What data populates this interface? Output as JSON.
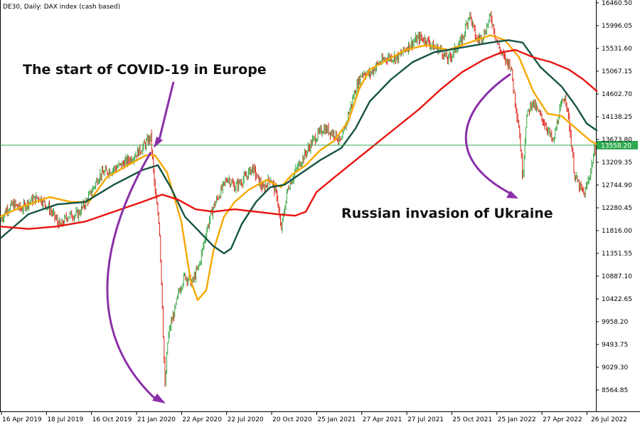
{
  "chart_data": {
    "type": "line",
    "title": "DE30, Daily:  DAX index (cash based)",
    "ylim": [
      8300,
      16460.5
    ],
    "grid": false,
    "x_ticks": [
      "16 Apr 2019",
      "18 Jul 2019",
      "16 Oct 2019",
      "21 Jan 2020",
      "22 Apr 2020",
      "22 Jul 2020",
      "20 Oct 2020",
      "25 Jan 2021",
      "27 Apr 2021",
      "27 Jul 2021",
      "25 Oct 2021",
      "25 Jan 2022",
      "27 Apr 2022",
      "26 Jul 2022"
    ],
    "y_ticks": [
      "16460.50",
      "15996.05",
      "15531.60",
      "15067.15",
      "14602.70",
      "14138.25",
      "13673.80",
      "13209.35",
      "12744.90",
      "12280.45",
      "11816.00",
      "11351.55",
      "10887.10",
      "10422.65",
      "9958.20",
      "9493.75",
      "9029.30",
      "8564.85"
    ],
    "current_price": {
      "label": "13558.20",
      "value": 13558.2,
      "color": "#2fa84f"
    },
    "series": [
      {
        "key": "price",
        "color": "mixed red/green candles",
        "values": [
          [
            0,
            12000
          ],
          [
            10,
            12270
          ],
          [
            20,
            12350
          ],
          [
            30,
            12250
          ],
          [
            40,
            12400
          ],
          [
            55,
            12500
          ],
          [
            70,
            12250
          ],
          [
            85,
            11900
          ],
          [
            95,
            12120
          ],
          [
            110,
            12150
          ],
          [
            125,
            12500
          ],
          [
            140,
            12950
          ],
          [
            155,
            13050
          ],
          [
            170,
            13150
          ],
          [
            185,
            13300
          ],
          [
            200,
            13500
          ],
          [
            212,
            13720
          ],
          [
            218,
            12600
          ],
          [
            224,
            11950
          ],
          [
            228,
            10400
          ],
          [
            232,
            8600
          ],
          [
            236,
            9600
          ],
          [
            240,
            9900
          ],
          [
            246,
            10200
          ],
          [
            252,
            10600
          ],
          [
            260,
            10900
          ],
          [
            270,
            10750
          ],
          [
            280,
            11100
          ],
          [
            290,
            11800
          ],
          [
            300,
            12300
          ],
          [
            310,
            12600
          ],
          [
            320,
            12900
          ],
          [
            330,
            12700
          ],
          [
            345,
            12900
          ],
          [
            355,
            13100
          ],
          [
            370,
            12650
          ],
          [
            380,
            12900
          ],
          [
            390,
            12500
          ],
          [
            395,
            11800
          ],
          [
            405,
            12700
          ],
          [
            420,
            13150
          ],
          [
            430,
            13400
          ],
          [
            440,
            13650
          ],
          [
            455,
            13900
          ],
          [
            470,
            13800
          ],
          [
            480,
            13600
          ],
          [
            490,
            14200
          ],
          [
            500,
            14700
          ],
          [
            510,
            15050
          ],
          [
            520,
            15000
          ],
          [
            530,
            15200
          ],
          [
            545,
            15350
          ],
          [
            560,
            15350
          ],
          [
            575,
            15600
          ],
          [
            590,
            15750
          ],
          [
            600,
            15700
          ],
          [
            610,
            15550
          ],
          [
            620,
            15500
          ],
          [
            630,
            15300
          ],
          [
            640,
            15500
          ],
          [
            650,
            15700
          ],
          [
            660,
            16250
          ],
          [
            670,
            15700
          ],
          [
            680,
            15800
          ],
          [
            690,
            16200
          ],
          [
            700,
            15600
          ],
          [
            710,
            15300
          ],
          [
            718,
            15200
          ],
          [
            725,
            14400
          ],
          [
            730,
            13900
          ],
          [
            735,
            12900
          ],
          [
            740,
            14100
          ],
          [
            748,
            14450
          ],
          [
            758,
            14200
          ],
          [
            768,
            13950
          ],
          [
            778,
            13600
          ],
          [
            786,
            14200
          ],
          [
            795,
            14600
          ],
          [
            802,
            13800
          ],
          [
            808,
            12950
          ],
          [
            815,
            12700
          ],
          [
            822,
            12550
          ],
          [
            830,
            13000
          ],
          [
            836,
            13450
          ],
          [
            840,
            13550
          ]
        ]
      },
      {
        "key": "ma_fast",
        "color": "#f5a800",
        "values": [
          [
            0,
            12100
          ],
          [
            30,
            12300
          ],
          [
            70,
            12500
          ],
          [
            100,
            12400
          ],
          [
            125,
            12400
          ],
          [
            150,
            12900
          ],
          [
            180,
            13150
          ],
          [
            205,
            13350
          ],
          [
            218,
            13350
          ],
          [
            235,
            13000
          ],
          [
            255,
            12000
          ],
          [
            268,
            10800
          ],
          [
            278,
            10400
          ],
          [
            290,
            10600
          ],
          [
            300,
            11400
          ],
          [
            315,
            12100
          ],
          [
            330,
            12400
          ],
          [
            350,
            12650
          ],
          [
            375,
            12850
          ],
          [
            395,
            12700
          ],
          [
            410,
            12950
          ],
          [
            430,
            13150
          ],
          [
            450,
            13450
          ],
          [
            470,
            13650
          ],
          [
            490,
            14050
          ],
          [
            505,
            14700
          ],
          [
            520,
            15100
          ],
          [
            545,
            15300
          ],
          [
            570,
            15500
          ],
          [
            600,
            15600
          ],
          [
            630,
            15500
          ],
          [
            660,
            15650
          ],
          [
            690,
            15800
          ],
          [
            710,
            15700
          ],
          [
            730,
            15350
          ],
          [
            750,
            14650
          ],
          [
            770,
            14200
          ],
          [
            790,
            14150
          ],
          [
            810,
            13900
          ],
          [
            830,
            13650
          ],
          [
            840,
            13570
          ]
        ]
      },
      {
        "key": "ma_mid",
        "color": "#155446",
        "values": [
          [
            0,
            11650
          ],
          [
            40,
            12150
          ],
          [
            80,
            12350
          ],
          [
            120,
            12400
          ],
          [
            160,
            12750
          ],
          [
            200,
            13050
          ],
          [
            222,
            13150
          ],
          [
            240,
            12700
          ],
          [
            260,
            12100
          ],
          [
            280,
            11800
          ],
          [
            300,
            11500
          ],
          [
            315,
            11350
          ],
          [
            325,
            11450
          ],
          [
            340,
            11950
          ],
          [
            360,
            12400
          ],
          [
            380,
            12700
          ],
          [
            400,
            12750
          ],
          [
            420,
            12950
          ],
          [
            450,
            13250
          ],
          [
            480,
            13500
          ],
          [
            500,
            13900
          ],
          [
            520,
            14450
          ],
          [
            550,
            14900
          ],
          [
            580,
            15250
          ],
          [
            610,
            15450
          ],
          [
            650,
            15550
          ],
          [
            690,
            15650
          ],
          [
            715,
            15700
          ],
          [
            735,
            15650
          ],
          [
            760,
            15150
          ],
          [
            790,
            14750
          ],
          [
            810,
            14350
          ],
          [
            825,
            14000
          ],
          [
            840,
            13850
          ]
        ]
      },
      {
        "key": "ma_slow",
        "color": "#e8150f",
        "values": [
          [
            0,
            11900
          ],
          [
            40,
            11850
          ],
          [
            80,
            11900
          ],
          [
            120,
            12000
          ],
          [
            160,
            12200
          ],
          [
            200,
            12400
          ],
          [
            228,
            12550
          ],
          [
            250,
            12450
          ],
          [
            275,
            12250
          ],
          [
            300,
            12200
          ],
          [
            330,
            12250
          ],
          [
            360,
            12200
          ],
          [
            390,
            12150
          ],
          [
            415,
            12120
          ],
          [
            430,
            12200
          ],
          [
            445,
            12600
          ],
          [
            470,
            12900
          ],
          [
            500,
            13250
          ],
          [
            530,
            13600
          ],
          [
            560,
            13950
          ],
          [
            590,
            14300
          ],
          [
            620,
            14700
          ],
          [
            650,
            15050
          ],
          [
            680,
            15300
          ],
          [
            705,
            15450
          ],
          [
            725,
            15500
          ],
          [
            750,
            15350
          ],
          [
            775,
            15250
          ],
          [
            800,
            15100
          ],
          [
            820,
            14900
          ],
          [
            840,
            14650
          ]
        ]
      }
    ],
    "annotations": [
      {
        "text": "The start of COVID-19 in Europe"
      },
      {
        "text": "Russian invasion of Ukraine"
      }
    ]
  }
}
